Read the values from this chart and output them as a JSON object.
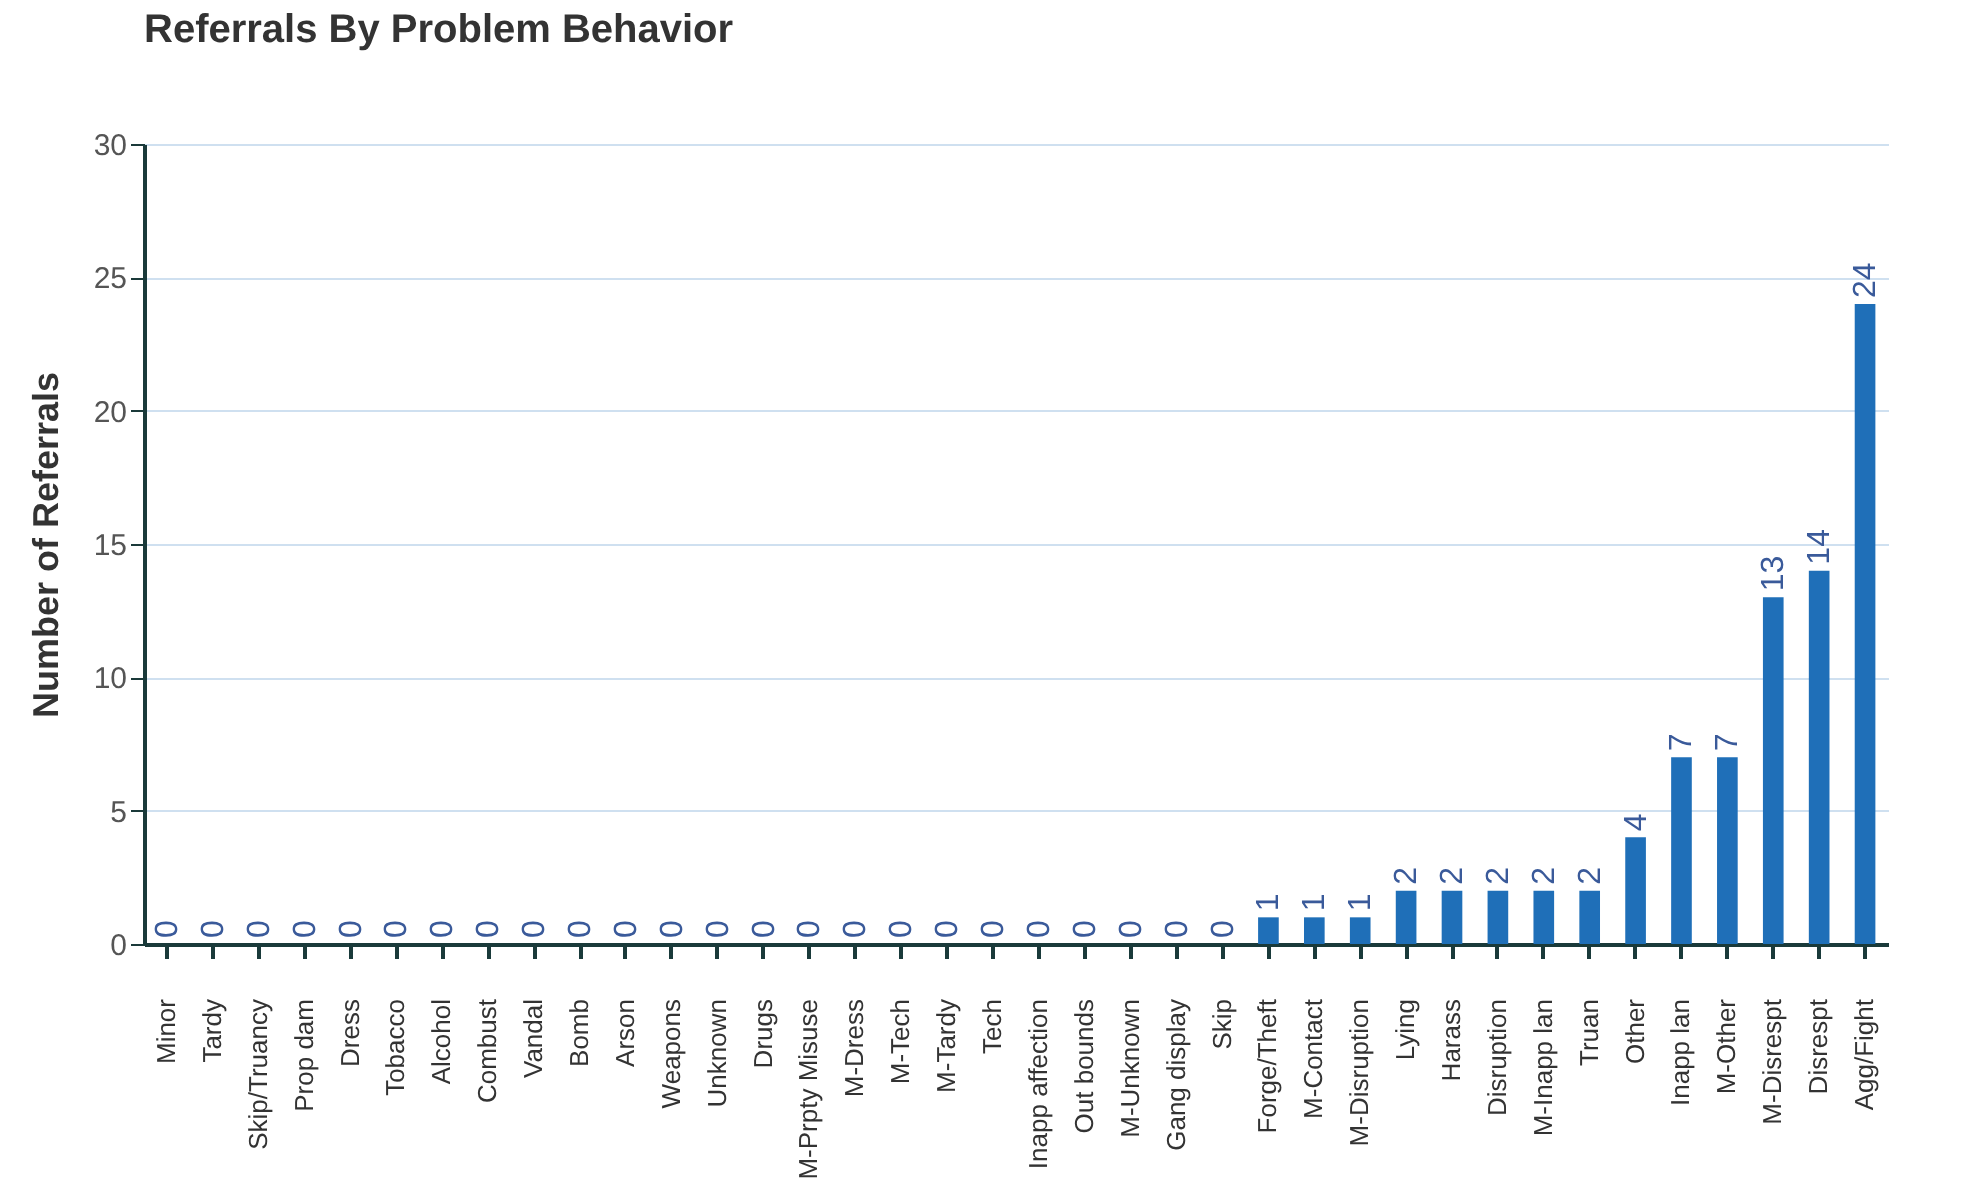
{
  "chart_data": {
    "type": "bar",
    "title": "Referrals By Problem Behavior",
    "ylabel": "Number of Referrals",
    "categories": [
      "Minor",
      "Tardy",
      "Skip/Truancy",
      "Prop dam",
      "Dress",
      "Tobacco",
      "Alcohol",
      "Combust",
      "Vandal",
      "Bomb",
      "Arson",
      "Weapons",
      "Unknown",
      "Drugs",
      "M-Prpty Misuse",
      "M-Dress",
      "M-Tech",
      "M-Tardy",
      "Tech",
      "Inapp affection",
      "Out bounds",
      "M-Unknown",
      "Gang display",
      "Skip",
      "Forge/Theft",
      "M-Contact",
      "M-Disruption",
      "Lying",
      "Harass",
      "Disruption",
      "M-Inapp lan",
      "Truan",
      "Other",
      "Inapp lan",
      "M-Other",
      "M-Disrespt",
      "Disrespt",
      "Agg/Fight"
    ],
    "values": [
      0,
      0,
      0,
      0,
      0,
      0,
      0,
      0,
      0,
      0,
      0,
      0,
      0,
      0,
      0,
      0,
      0,
      0,
      0,
      0,
      0,
      0,
      0,
      0,
      1,
      1,
      1,
      2,
      2,
      2,
      2,
      2,
      4,
      7,
      7,
      13,
      14,
      24
    ],
    "color": "#1f6fb8",
    "ylim": [
      0,
      30
    ],
    "yticks": [
      0,
      5,
      10,
      15,
      20,
      25,
      30
    ],
    "grid": "y",
    "data_labels": true
  }
}
